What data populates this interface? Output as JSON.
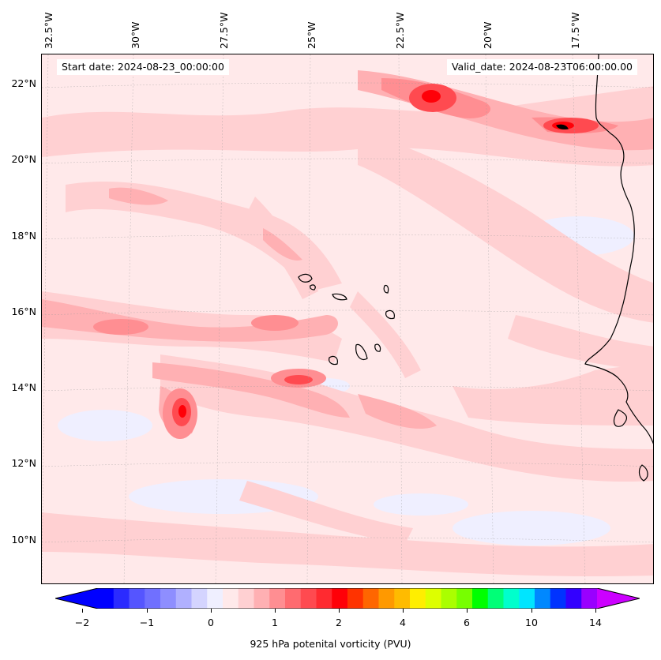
{
  "map": {
    "start_date": "Start date: 2024-08-23_00:00:00",
    "valid_date": "Valid_date: 2024-08-23T06:00:00.00",
    "lon_labels": [
      "32.5°W",
      "30°W",
      "27.5°W",
      "25°W",
      "22.5°W",
      "20°W",
      "17.5°W"
    ],
    "lat_labels": [
      "22°N",
      "20°N",
      "18°N",
      "16°N",
      "14°N",
      "12°N",
      "10°N"
    ],
    "land_color": "#000000",
    "background_color": "#ffe9ea"
  },
  "colorbar": {
    "label": "925 hPa potenital vorticity (PVU)",
    "tick_labels": [
      "−2",
      "−1",
      "0",
      "1",
      "2",
      "4",
      "6",
      "10",
      "14"
    ],
    "colors": [
      "#0000ff",
      "#2b2bff",
      "#5555ff",
      "#7070ff",
      "#8e8eff",
      "#b0b0ff",
      "#d4d4ff",
      "#efefff",
      "#ffe9ea",
      "#ffd0d2",
      "#ffb0b3",
      "#ff8e92",
      "#ff6b70",
      "#ff4a50",
      "#ff2a30",
      "#ff0008",
      "#ff3300",
      "#ff6600",
      "#ff9900",
      "#ffbb00",
      "#ffee00",
      "#ddff00",
      "#aaff00",
      "#77ff00",
      "#00ff00",
      "#00ff77",
      "#00ffcc",
      "#00e5ff",
      "#0088ff",
      "#0033ff",
      "#3300ff",
      "#9900ff"
    ],
    "extend_low_color": "#0000ff",
    "extend_high_color": "#cc00ff"
  }
}
